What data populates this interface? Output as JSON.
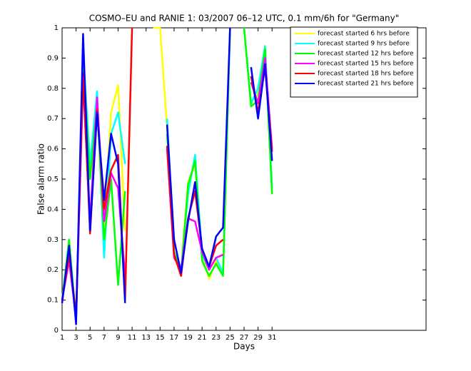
{
  "chart_data": {
    "type": "line",
    "title": "COSMO–EU and RANIE 1: 03/2007 06–12 UTC, 0.1 mm/6h for \"Germany\"",
    "x_label": "Days",
    "y_label": "False alarm ratio",
    "x": [
      1,
      2,
      3,
      4,
      5,
      6,
      7,
      8,
      9,
      10,
      11,
      12,
      13,
      14,
      15,
      16,
      17,
      18,
      19,
      20,
      21,
      22,
      23,
      24,
      25,
      26,
      27,
      28,
      29,
      30,
      31
    ],
    "xlim": [
      1,
      53
    ],
    "xticks": [
      1,
      3,
      5,
      7,
      9,
      11,
      13,
      15,
      17,
      19,
      21,
      23,
      25,
      27,
      29,
      31
    ],
    "ylim": [
      0,
      1
    ],
    "yticks": [
      0,
      0.1,
      0.2,
      0.3,
      0.4,
      0.5,
      0.6,
      0.7,
      0.8,
      0.9,
      1
    ],
    "legend": "upper right",
    "grid": false,
    "series": [
      {
        "name": "forecast started 6 hrs before",
        "color": "#ffff00",
        "values": [
          0.1,
          0.28,
          0.05,
          0.9,
          0.5,
          0.75,
          0.35,
          0.72,
          0.81,
          0.33,
          null,
          null,
          null,
          1,
          1,
          0.67,
          0.25,
          0.2,
          0.49,
          0.55,
          0.25,
          0.17,
          0.23,
          0.19,
          1,
          null,
          1,
          0.75,
          0.78,
          0.92,
          0.46
        ]
      },
      {
        "name": "forecast started 9 hrs before",
        "color": "#00ffff",
        "values": [
          0.1,
          0.29,
          0.03,
          0.92,
          0.55,
          0.79,
          0.24,
          0.65,
          0.72,
          0.55,
          null,
          null,
          null,
          null,
          null,
          0.7,
          0.26,
          0.2,
          0.45,
          0.58,
          0.25,
          0.2,
          0.24,
          0.19,
          1,
          null,
          1,
          0.75,
          0.8,
          0.94,
          0.47
        ]
      },
      {
        "name": "forecast started 12 hrs before",
        "color": "#00ff00",
        "values": [
          0.1,
          0.3,
          0.03,
          0.9,
          0.5,
          0.75,
          0.3,
          0.5,
          0.15,
          0.46,
          null,
          null,
          null,
          null,
          null,
          0.65,
          0.26,
          0.19,
          0.48,
          0.56,
          0.23,
          0.18,
          0.22,
          0.18,
          1,
          null,
          1,
          0.74,
          0.76,
          0.93,
          0.45
        ]
      },
      {
        "name": "forecast started 15 hrs before",
        "color": "#ff00ff",
        "values": [
          0.1,
          0.23,
          0.04,
          0.82,
          0.36,
          0.77,
          0.36,
          0.52,
          0.47,
          0.18,
          null,
          null,
          null,
          null,
          null,
          0.6,
          0.24,
          0.2,
          0.37,
          0.36,
          0.26,
          0.2,
          0.24,
          0.25,
          null,
          null,
          null,
          0.82,
          0.75,
          0.9,
          0.6
        ]
      },
      {
        "name": "forecast started 18 hrs before",
        "color": "#ff0000",
        "values": [
          0.1,
          0.25,
          0.05,
          0.85,
          0.32,
          0.73,
          0.4,
          0.53,
          0.58,
          0.1,
          1,
          null,
          null,
          null,
          null,
          0.61,
          0.25,
          0.18,
          0.37,
          0.46,
          0.27,
          0.21,
          0.28,
          0.3,
          null,
          null,
          null,
          0.84,
          0.72,
          0.87,
          0.59
        ]
      },
      {
        "name": "forecast started 21 hrs before",
        "color": "#0000ff",
        "values": [
          0.09,
          0.28,
          0.02,
          0.98,
          0.33,
          0.72,
          0.43,
          0.65,
          0.55,
          0.09,
          null,
          null,
          null,
          null,
          null,
          0.68,
          0.3,
          0.19,
          0.36,
          0.49,
          0.27,
          0.21,
          0.31,
          0.34,
          1,
          null,
          null,
          0.87,
          0.7,
          0.88,
          0.56
        ]
      }
    ]
  }
}
